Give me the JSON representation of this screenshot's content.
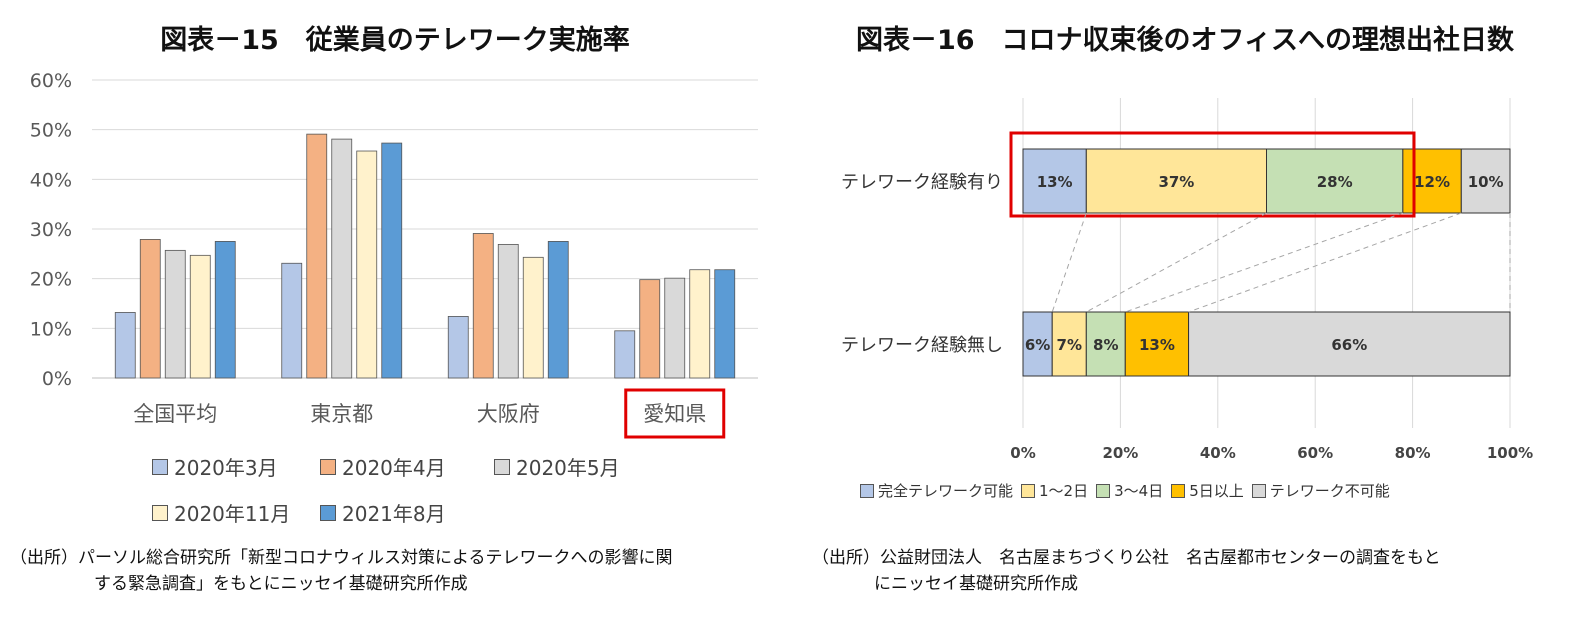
{
  "colors": {
    "s2020_03": "#b4c7e7",
    "s2020_04": "#f4b183",
    "s2020_05": "#d9d9d9",
    "s2020_11": "#fff2cc",
    "s2021_08": "#5b9bd5",
    "complete": "#b4c7e7",
    "one_two": "#ffe699",
    "three_four": "#c5e0b4",
    "five_plus": "#ffc000",
    "impossible": "#d9d9d9",
    "highlight": "#e00000"
  },
  "left": {
    "title": "図表－15　従業員のテレワーク実施率",
    "note_line1": "（出所）パーソル総合研究所「新型コロナウィルス対策によるテレワークへの影響に関",
    "note_line2": "する緊急調査」をもとにニッセイ基礎研究所作成"
  },
  "right": {
    "title": "図表－16　コロナ収束後のオフィスへの理想出社日数",
    "note_line1": "（出所）公益財団法人　名古屋まちづくり公社　名古屋都市センターの調査をもと",
    "note_line2": "にニッセイ基礎研究所作成"
  },
  "chart_data": [
    {
      "type": "bar",
      "title": "図表－15　従業員のテレワーク実施率",
      "categories": [
        "全国平均",
        "東京都",
        "大阪府",
        "愛知県"
      ],
      "highlighted_category": "愛知県",
      "ylim": [
        0,
        60
      ],
      "yticks": [
        "0%",
        "10%",
        "20%",
        "30%",
        "40%",
        "50%",
        "60%"
      ],
      "grid": true,
      "legend_position": "bottom",
      "series": [
        {
          "name": "2020年3月",
          "values": [
            13.2,
            23.1,
            12.4,
            9.5
          ]
        },
        {
          "name": "2020年4月",
          "values": [
            27.9,
            49.1,
            29.1,
            19.8
          ]
        },
        {
          "name": "2020年5月",
          "values": [
            25.7,
            48.1,
            26.9,
            20.1
          ]
        },
        {
          "name": "2020年11月",
          "values": [
            24.7,
            45.7,
            24.3,
            21.8
          ]
        },
        {
          "name": "2021年8月",
          "values": [
            27.5,
            47.3,
            27.5,
            21.8
          ]
        }
      ]
    },
    {
      "type": "bar",
      "orientation": "horizontal-stacked-100",
      "title": "図表－16　コロナ収束後のオフィスへの理想出社日数",
      "categories": [
        "テレワーク経験有り",
        "テレワーク経験無し"
      ],
      "highlighted_category": "テレワーク経験有り",
      "xlim": [
        0,
        100
      ],
      "xticks": [
        "0%",
        "20%",
        "40%",
        "60%",
        "80%",
        "100%"
      ],
      "grid": true,
      "legend_position": "bottom",
      "series": [
        {
          "name": "完全テレワーク可能",
          "values": [
            13,
            6
          ],
          "labels": [
            "13%",
            "6%"
          ]
        },
        {
          "name": "1～2日",
          "values": [
            37,
            7
          ],
          "labels": [
            "37%",
            "7%"
          ]
        },
        {
          "name": "3～4日",
          "values": [
            28,
            8
          ],
          "labels": [
            "28%",
            "8%"
          ]
        },
        {
          "name": "5日以上",
          "values": [
            12,
            13
          ],
          "labels": [
            "12%",
            "13%"
          ]
        },
        {
          "name": "テレワーク不可能",
          "values": [
            10,
            66
          ],
          "labels": [
            "10%",
            "66%"
          ]
        }
      ]
    }
  ]
}
